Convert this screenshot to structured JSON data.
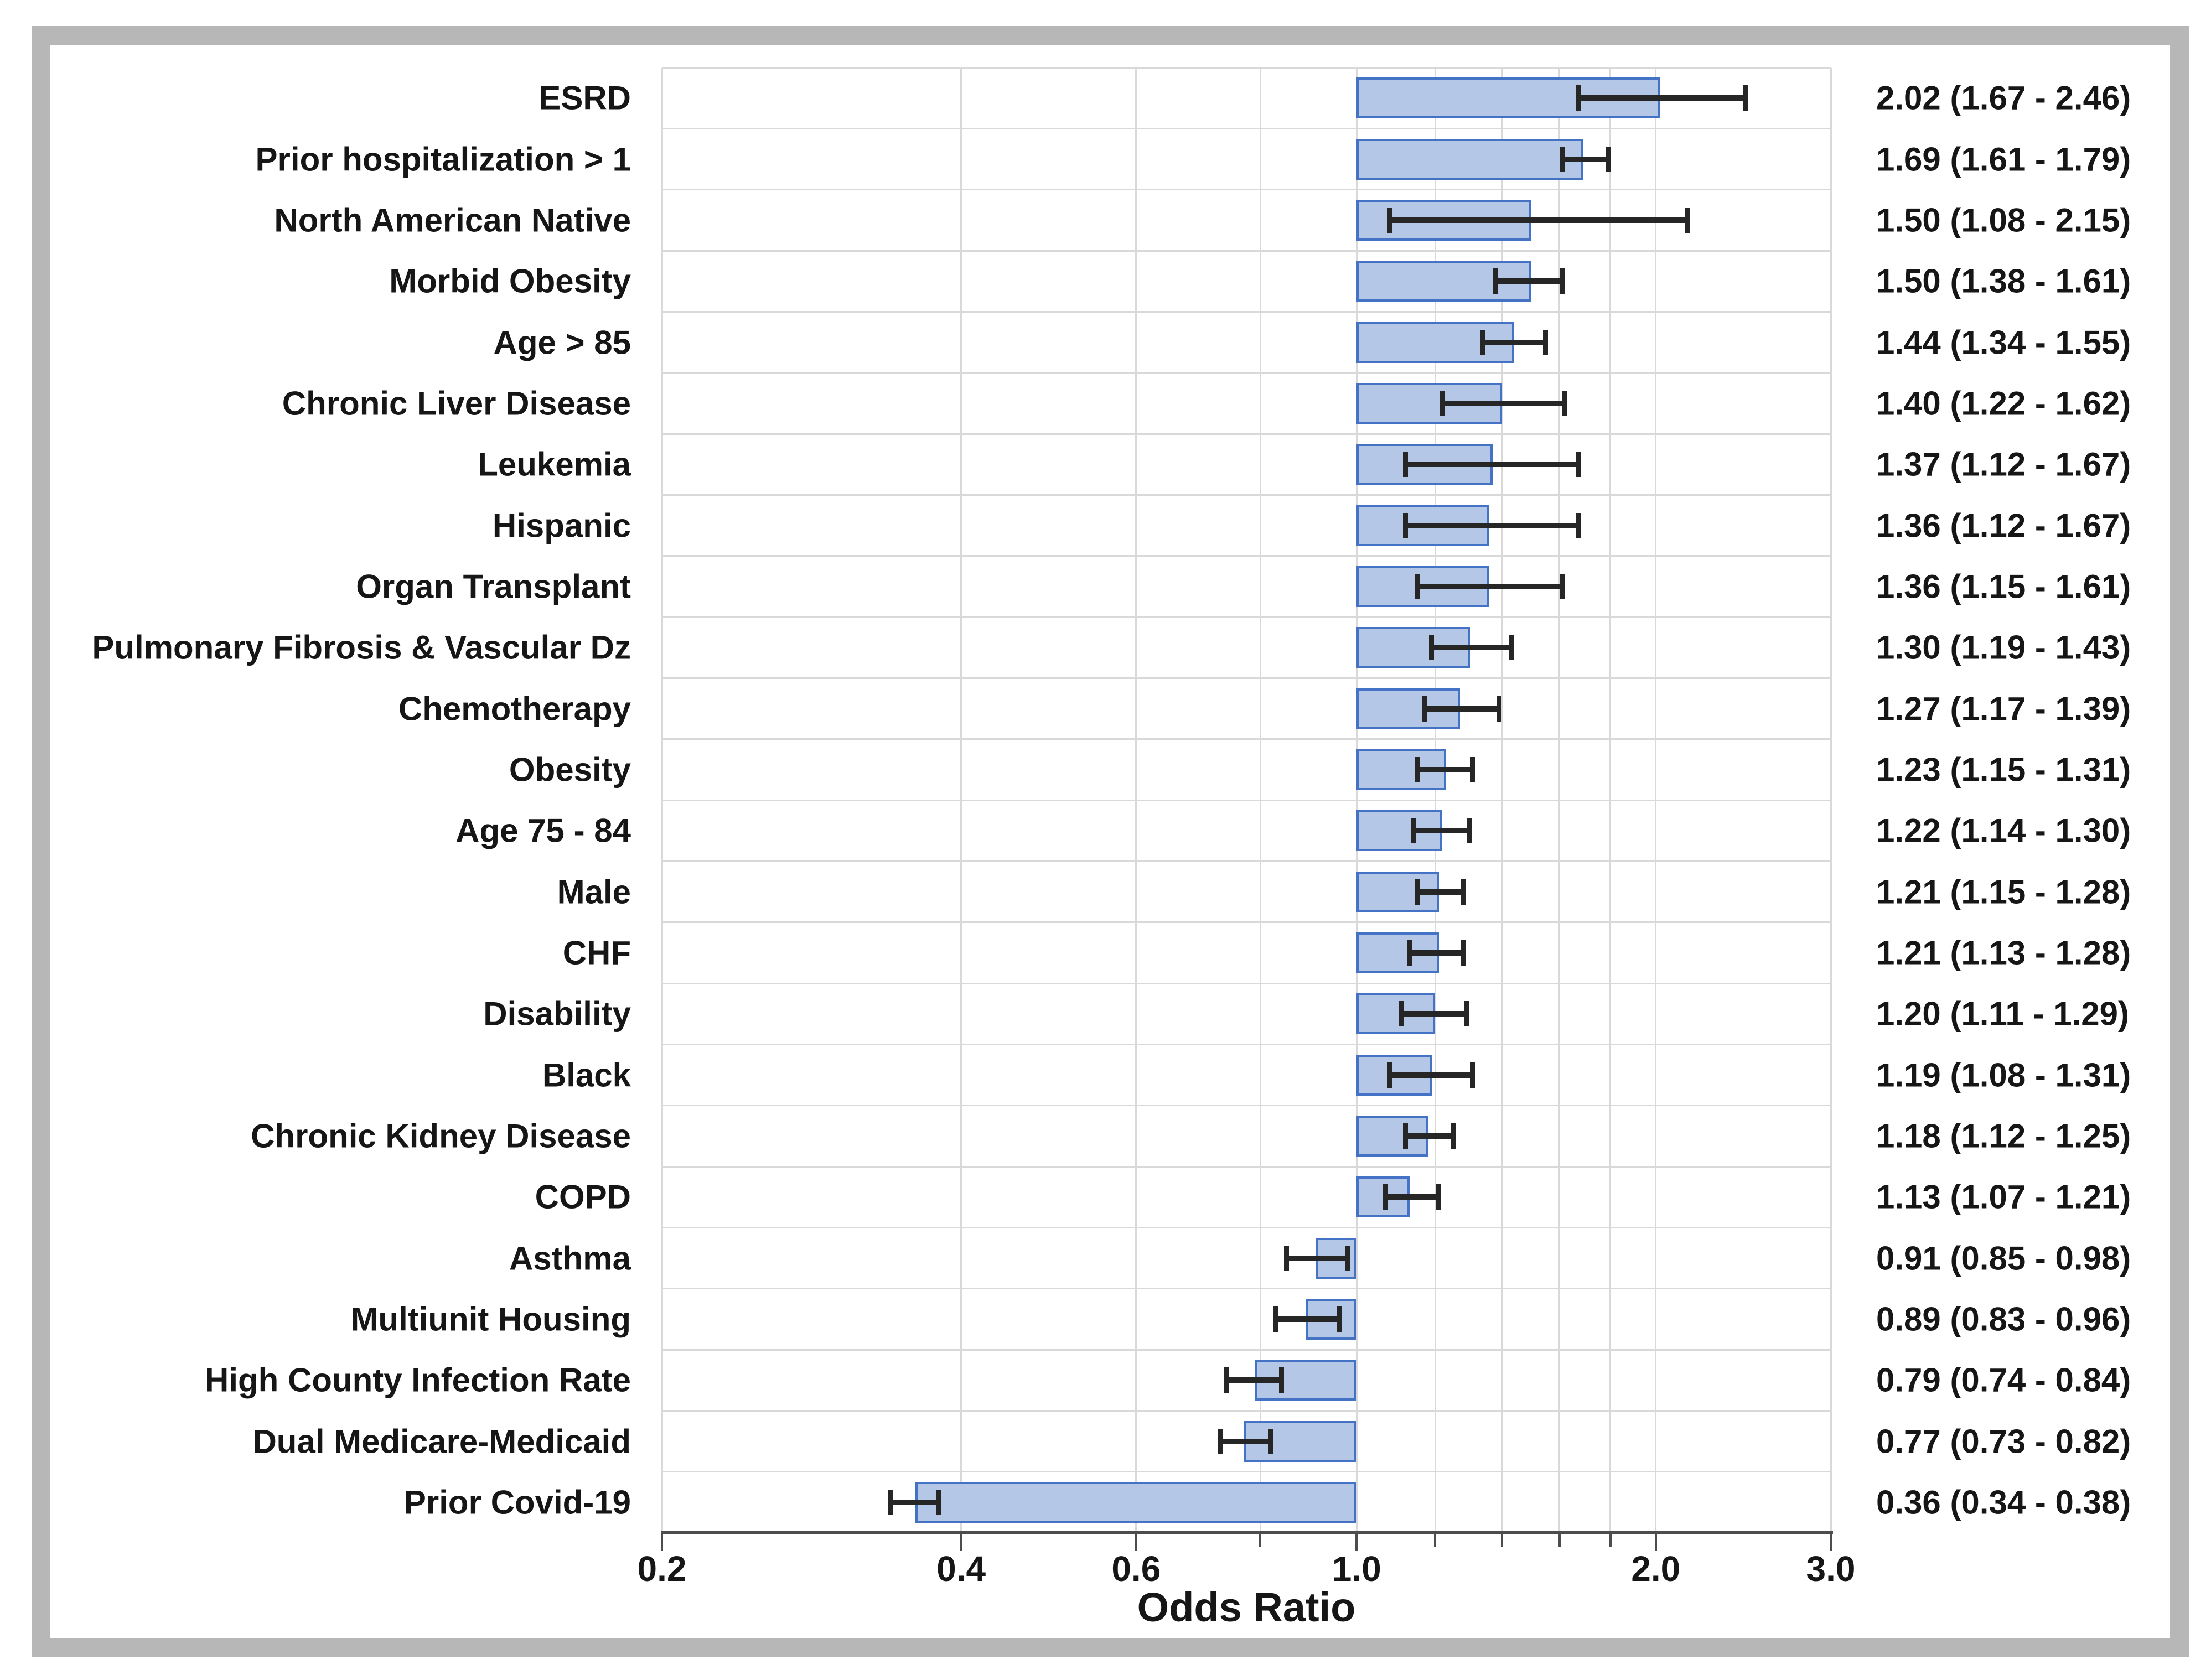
{
  "figure": {
    "kind": "forest plot of odds ratios with 95% confidence intervals",
    "xlabel": "Odds Ratio"
  },
  "chart_data": {
    "type": "bar",
    "orientation": "horizontal",
    "x_scale": "log",
    "xlim": [
      0.2,
      3.0
    ],
    "baseline": 1.0,
    "grid": "on",
    "legend_position": "none",
    "xlabel": "Odds Ratio",
    "grid_values": [
      0.2,
      0.4,
      0.6,
      0.8,
      1.0,
      1.2,
      1.4,
      1.6,
      1.8,
      2.0,
      3.0
    ],
    "x_ticks": [
      {
        "v": 0.2,
        "label": "0.2"
      },
      {
        "v": 0.4,
        "label": "0.4"
      },
      {
        "v": 0.6,
        "label": "0.6"
      },
      {
        "v": 1.0,
        "label": "1.0"
      },
      {
        "v": 2.0,
        "label": "2.0"
      },
      {
        "v": 3.0,
        "label": "3.0"
      }
    ],
    "categories": [
      "ESRD",
      "Prior hospitalization > 1",
      "North American Native",
      "Morbid Obesity",
      "Age > 85",
      "Chronic Liver Disease",
      "Leukemia",
      "Hispanic",
      "Organ Transplant",
      "Pulmonary Fibrosis & Vascular Dz",
      "Chemotherapy",
      "Obesity",
      "Age 75 - 84",
      "Male",
      "CHF",
      "Disability",
      "Black",
      "Chronic Kidney Disease",
      "COPD",
      "Asthma",
      "Multiunit Housing",
      "High County Infection Rate",
      "Dual Medicare-Medicaid",
      "Prior Covid-19"
    ],
    "values": [
      2.02,
      1.69,
      1.5,
      1.5,
      1.44,
      1.4,
      1.37,
      1.36,
      1.36,
      1.3,
      1.27,
      1.23,
      1.22,
      1.21,
      1.21,
      1.2,
      1.19,
      1.18,
      1.13,
      0.91,
      0.89,
      0.79,
      0.77,
      0.36
    ],
    "ci_low": [
      1.67,
      1.61,
      1.08,
      1.38,
      1.34,
      1.22,
      1.12,
      1.12,
      1.15,
      1.19,
      1.17,
      1.15,
      1.14,
      1.15,
      1.13,
      1.11,
      1.08,
      1.12,
      1.07,
      0.85,
      0.83,
      0.74,
      0.73,
      0.34
    ],
    "ci_high": [
      2.46,
      1.79,
      2.15,
      1.61,
      1.55,
      1.62,
      1.67,
      1.67,
      1.61,
      1.43,
      1.39,
      1.31,
      1.3,
      1.28,
      1.28,
      1.29,
      1.31,
      1.25,
      1.21,
      0.98,
      0.96,
      0.84,
      0.82,
      0.38
    ],
    "value_labels": [
      "2.02 (1.67 - 2.46)",
      "1.69 (1.61 - 1.79)",
      "1.50 (1.08 - 2.15)",
      "1.50 (1.38 - 1.61)",
      "1.44 (1.34 - 1.55)",
      "1.40 (1.22 - 1.62)",
      "1.37 (1.12 - 1.67)",
      "1.36 (1.12 - 1.67)",
      "1.36 (1.15 - 1.61)",
      "1.30 (1.19 - 1.43)",
      "1.27 (1.17 - 1.39)",
      "1.23 (1.15 - 1.31)",
      "1.22 (1.14 - 1.30)",
      "1.21 (1.15 - 1.28)",
      "1.21 (1.13 - 1.28)",
      "1.20 (1.11 - 1.29)",
      "1.19 (1.08 - 1.31)",
      "1.18 (1.12 - 1.25)",
      "1.13 (1.07 - 1.21)",
      "0.91 (0.85 - 0.98)",
      "0.89 (0.83 - 0.96)",
      "0.79 (0.74 - 0.84)",
      "0.77 (0.73 - 0.82)",
      "0.36 (0.34 - 0.38)"
    ],
    "colors": {
      "bar_fill": "#b4c7e7",
      "bar_border": "#4472c4",
      "gridline": "#d9d9d9",
      "axis_line": "#4d4d4d",
      "error_bar": "#262626",
      "frame": "#b7b7b7",
      "text": "#161616",
      "background": "#ffffff"
    }
  }
}
